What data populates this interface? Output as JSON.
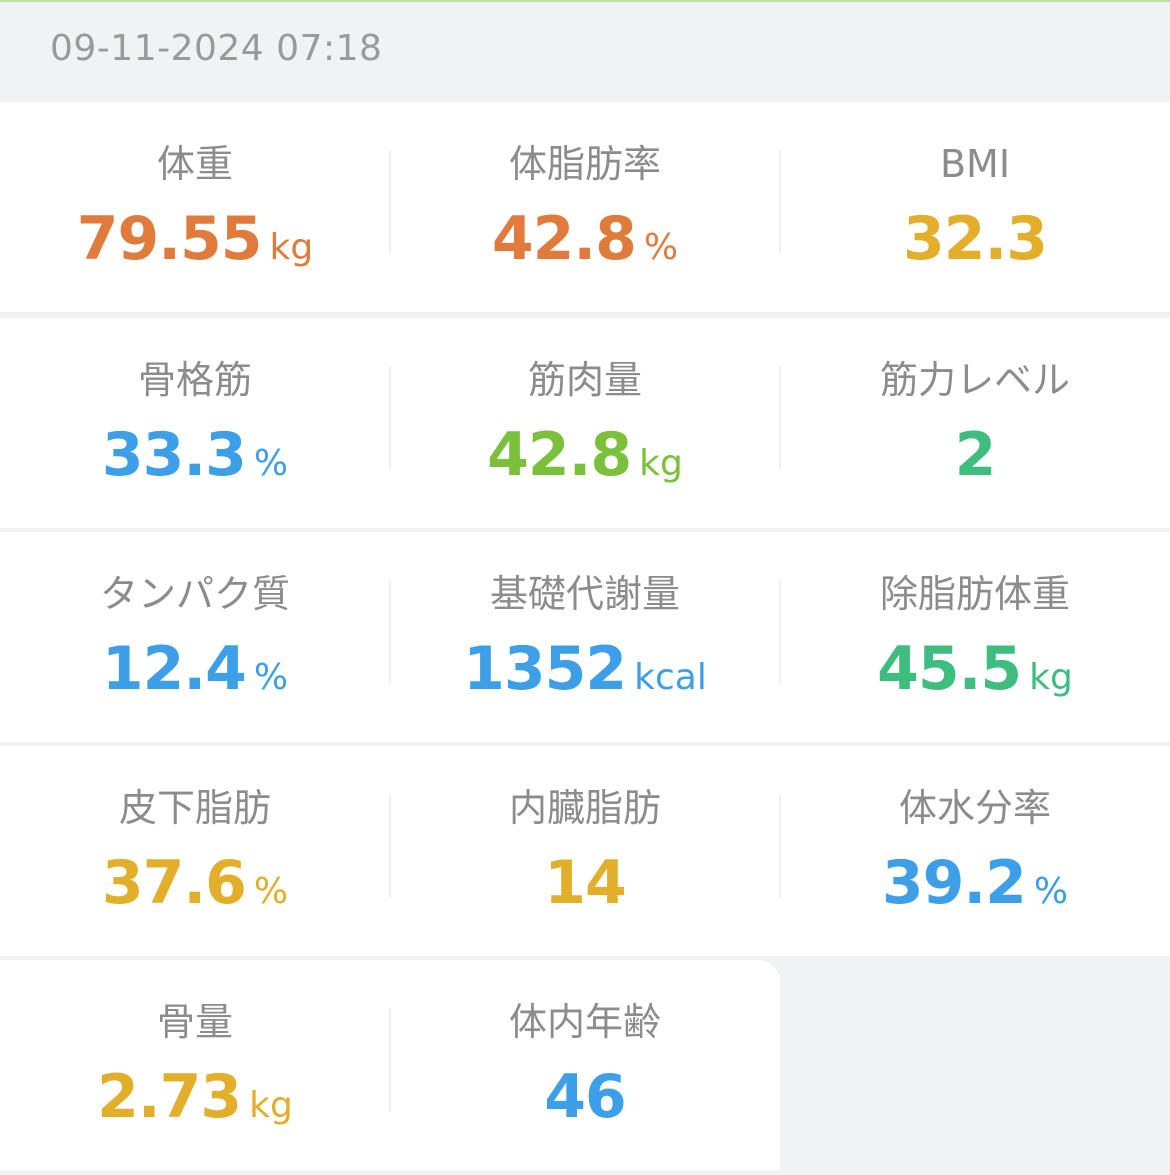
{
  "header": {
    "datetime": "09-11-2024 07:18"
  },
  "metrics": [
    {
      "label": "体重",
      "value": "79.55",
      "unit": "kg",
      "color": "#e07b3c"
    },
    {
      "label": "体脂肪率",
      "value": "42.8",
      "unit": "%",
      "color": "#e07b3c"
    },
    {
      "label": "BMI",
      "value": "32.3",
      "unit": "",
      "color": "#e3ae2a"
    },
    {
      "label": "骨格筋",
      "value": "33.3",
      "unit": "%",
      "color": "#3d9fe8"
    },
    {
      "label": "筋肉量",
      "value": "42.8",
      "unit": "kg",
      "color": "#7ac03a"
    },
    {
      "label": "筋力レベル",
      "value": "2",
      "unit": "",
      "color": "#3fbd7f"
    },
    {
      "label": "タンパク質",
      "value": "12.4",
      "unit": "%",
      "color": "#3d9fe8"
    },
    {
      "label": "基礎代謝量",
      "value": "1352",
      "unit": "kcal",
      "color": "#3d9fe8"
    },
    {
      "label": "除脂肪体重",
      "value": "45.5",
      "unit": "kg",
      "color": "#3fbd7f"
    },
    {
      "label": "皮下脂肪",
      "value": "37.6",
      "unit": "%",
      "color": "#e3ae2a"
    },
    {
      "label": "内臓脂肪",
      "value": "14",
      "unit": "",
      "color": "#e3ae2a"
    },
    {
      "label": "体水分率",
      "value": "39.2",
      "unit": "%",
      "color": "#3d9fe8"
    },
    {
      "label": "骨量",
      "value": "2.73",
      "unit": "kg",
      "color": "#e3ae2a"
    },
    {
      "label": "体内年齢",
      "value": "46",
      "unit": "",
      "color": "#3d9fe8"
    }
  ]
}
